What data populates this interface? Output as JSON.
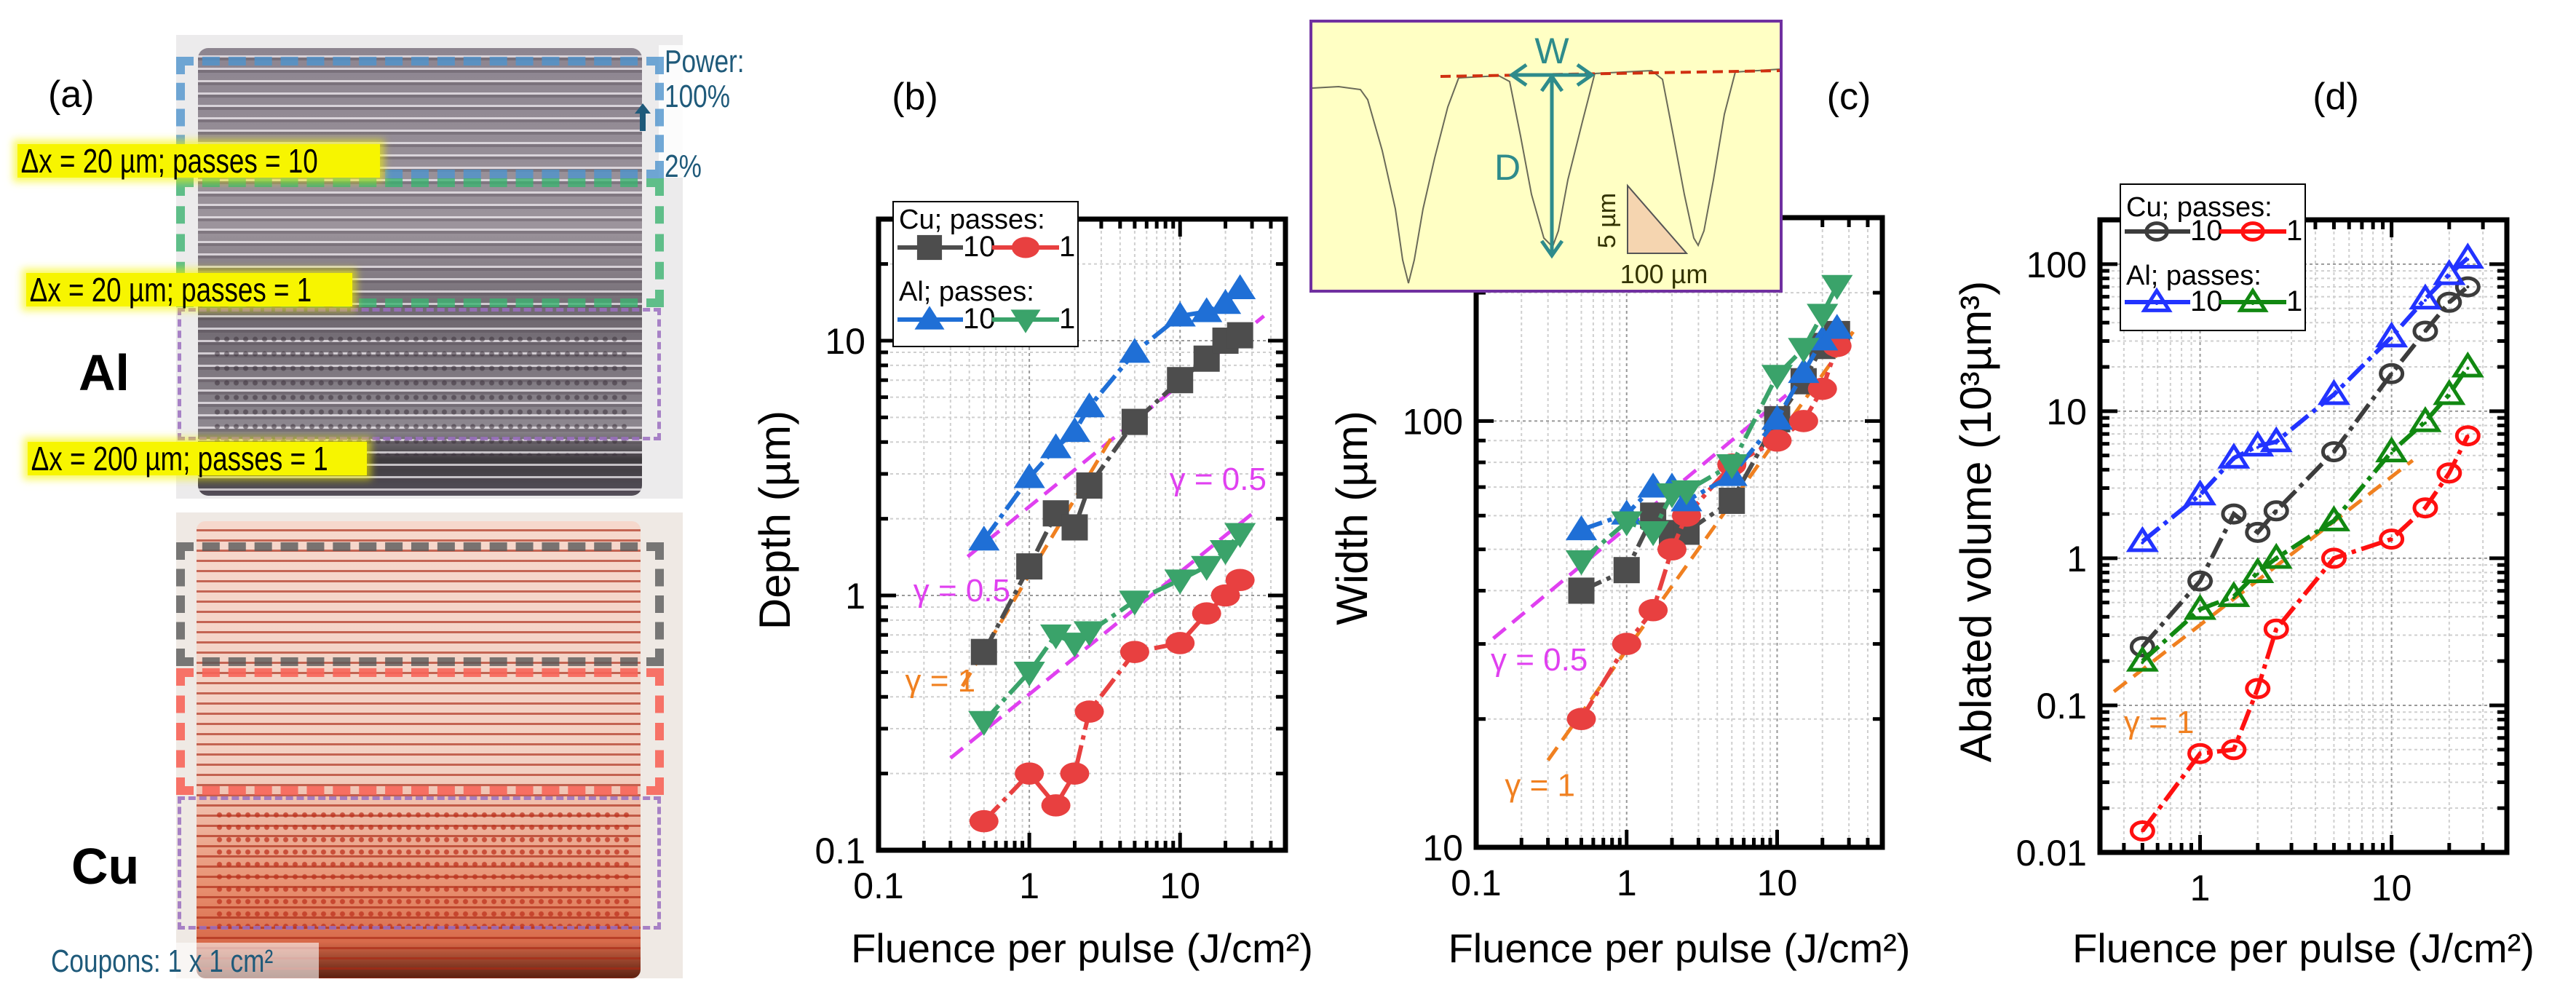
{
  "panel_a": {
    "label": "(a)",
    "al_label": "Al",
    "cu_label": "Cu",
    "power_title": "Power:",
    "power_max": "100%",
    "power_min": "2%",
    "region_labels": [
      "Δx = 20 µm; passes = 10",
      "Δx = 20 µm; passes = 1",
      "Δx = 200 µm; passes = 1"
    ],
    "coupons": "Coupons: 1 x 1 cm²",
    "colors": {
      "power_text": "#1f5a7a",
      "highlight": "#f7f500",
      "region_10_passes": "#4f94cd",
      "region_1_pass": "#3cb371",
      "region_200um": "#9b6fc0",
      "cu_region_10": "#5a5a5a",
      "cu_region_1": "#f8665a"
    }
  },
  "inset": {
    "width_label": "W",
    "depth_label": "D",
    "scale_vertical": "5 µm",
    "scale_horizontal": "100 µm",
    "colors": {
      "background": "#ffffc4",
      "border": "#7030a0",
      "arrows": "#2e8b8b",
      "baseline": "#d03010"
    }
  },
  "chart_data": [
    {
      "panel": "(b)",
      "type": "line",
      "xscale": "log",
      "yscale": "log",
      "xlabel": "Fluence per pulse (J/cm²)",
      "ylabel": "Depth (µm)",
      "xlim": [
        0.1,
        50
      ],
      "ylim": [
        0.1,
        30
      ],
      "xticks": [
        "0.1",
        "1",
        "10"
      ],
      "yticks": [
        "0.1",
        "1",
        "10"
      ],
      "grid": true,
      "x": [
        0.5,
        1,
        1.5,
        2,
        2.5,
        5,
        10,
        15,
        20,
        25
      ],
      "legend": {
        "placement": "top-left",
        "groups": [
          "Cu; passes:",
          "Al; passes:"
        ]
      },
      "series": [
        {
          "name": "10",
          "material": "Cu",
          "color": "#4d4d4d",
          "marker": "square",
          "filled": true,
          "values": [
            0.6,
            1.3,
            2.1,
            1.85,
            2.7,
            4.8,
            7.0,
            8.5,
            10.0,
            10.5
          ]
        },
        {
          "name": "1",
          "material": "Cu",
          "color": "#e84040",
          "marker": "circle",
          "filled": true,
          "values": [
            0.13,
            0.2,
            0.15,
            0.2,
            0.35,
            0.6,
            0.65,
            0.85,
            1.0,
            1.15
          ]
        },
        {
          "name": "10",
          "material": "Al",
          "color": "#1f6fd6",
          "marker": "triangle-up",
          "filled": true,
          "values": [
            1.65,
            2.9,
            3.8,
            4.4,
            5.5,
            9.0,
            12.5,
            13.0,
            14.0,
            16.0
          ]
        },
        {
          "name": "1",
          "material": "Al",
          "color": "#3aa36a",
          "marker": "triangle-down",
          "filled": true,
          "values": [
            0.32,
            0.5,
            0.7,
            0.65,
            0.72,
            0.95,
            1.15,
            1.3,
            1.5,
            1.75
          ]
        }
      ],
      "fits": [
        {
          "label": "γ = 0.5",
          "color": "#e040f0",
          "points": [
            [
              0.39,
              1.42
            ],
            [
              36,
              12.5
            ]
          ],
          "label_at": [
            0.17,
            0.95
          ]
        },
        {
          "label": "γ = 0.5",
          "color": "#e040f0",
          "points": [
            [
              0.3,
              0.23
            ],
            [
              30,
              2.09
            ]
          ],
          "label_at": [
            8.5,
            2.6
          ]
        },
        {
          "label": "γ = 1",
          "color": "#f08020",
          "points": [
            [
              0.36,
              0.44
            ],
            [
              3.6,
              4.27
            ]
          ],
          "label_at": [
            0.15,
            0.42
          ]
        }
      ]
    },
    {
      "panel": "(c)",
      "type": "line",
      "xscale": "log",
      "yscale": "log",
      "xlabel": "Fluence per pulse (J/cm²)",
      "ylabel": "Width (µm)",
      "xlim": [
        0.1,
        50
      ],
      "ylim": [
        10,
        300
      ],
      "xticks": [
        "0.1",
        "1",
        "10"
      ],
      "yticks": [
        "10",
        "100"
      ],
      "grid": true,
      "x": [
        0.5,
        1,
        1.5,
        2,
        2.5,
        5,
        10,
        15,
        20,
        25
      ],
      "series": [
        {
          "name": "10",
          "material": "Cu",
          "color": "#4d4d4d",
          "marker": "square",
          "filled": true,
          "values": [
            40,
            44.7,
            60,
            54.6,
            55,
            65,
            101,
            124,
            150,
            160
          ]
        },
        {
          "name": "1",
          "material": "Cu",
          "color": "#e84040",
          "marker": "circle",
          "filled": true,
          "values": [
            20,
            30,
            36,
            50,
            60,
            79,
            90,
            100,
            119,
            150
          ]
        },
        {
          "name": "10",
          "material": "Al",
          "color": "#1f6fd6",
          "marker": "triangle-up",
          "filled": true,
          "values": [
            55.6,
            60.5,
            70,
            70,
            65,
            74.5,
            101,
            130,
            155,
            165
          ]
        },
        {
          "name": "1",
          "material": "Al",
          "color": "#3aa36a",
          "marker": "triangle-down",
          "filled": true,
          "values": [
            47,
            58,
            55,
            67.5,
            68.6,
            79,
            128,
            148,
            178,
            208
          ]
        }
      ],
      "fits": [
        {
          "label": "γ = 0.5",
          "color": "#e040f0",
          "points": [
            [
              0.13,
              30.9
            ],
            [
              11.5,
              115
            ]
          ],
          "label_at": [
            0.125,
            26
          ]
        },
        {
          "label": "γ = 1",
          "color": "#f08020",
          "points": [
            [
              0.3,
              16
            ],
            [
              32,
              162
            ]
          ],
          "label_at": [
            0.155,
            13.2
          ]
        }
      ]
    },
    {
      "panel": "(d)",
      "type": "line",
      "xscale": "log",
      "yscale": "log",
      "xlabel": "Fluence per pulse (J/cm²)",
      "ylabel": "Ablated volume (10³µm³)",
      "xlim": [
        0.3,
        40
      ],
      "ylim": [
        0.01,
        200
      ],
      "xticks": [
        "1",
        "10"
      ],
      "yticks": [
        "0.01",
        "0.1",
        "1",
        "10",
        "100"
      ],
      "grid": true,
      "x": [
        0.5,
        1,
        1.5,
        2,
        2.5,
        5,
        10,
        15,
        20,
        25
      ],
      "legend": {
        "placement": "top-left",
        "groups": [
          "Cu; passes:",
          "Al; passes:"
        ]
      },
      "series": [
        {
          "name": "10",
          "material": "Cu",
          "color": "#3c3c3c",
          "marker": "circle",
          "filled": false,
          "values": [
            0.25,
            0.7,
            2.0,
            1.5,
            2.1,
            5.3,
            18,
            35,
            55,
            70
          ]
        },
        {
          "name": "1",
          "material": "Cu",
          "color": "#ff1010",
          "marker": "circle",
          "filled": false,
          "values": [
            0.014,
            0.047,
            0.05,
            0.13,
            0.33,
            1.0,
            1.35,
            2.2,
            3.8,
            6.8
          ]
        },
        {
          "name": "10",
          "material": "Al",
          "color": "#2233ff",
          "marker": "triangle-up",
          "filled": false,
          "values": [
            1.3,
            2.7,
            4.8,
            5.8,
            6.2,
            13,
            32,
            58,
            85,
            110
          ]
        },
        {
          "name": "1",
          "material": "Al",
          "color": "#118811",
          "marker": "triangle-up",
          "filled": false,
          "values": [
            0.2,
            0.45,
            0.55,
            0.8,
            1.0,
            1.8,
            5.3,
            8.5,
            13,
            20
          ]
        }
      ],
      "fits": [
        {
          "label": "γ = 1",
          "color": "#f08020",
          "points": [
            [
              0.355,
              0.124
            ],
            [
              12.9,
              4.63
            ]
          ],
          "label_at": [
            0.4,
            0.065
          ]
        }
      ]
    }
  ]
}
